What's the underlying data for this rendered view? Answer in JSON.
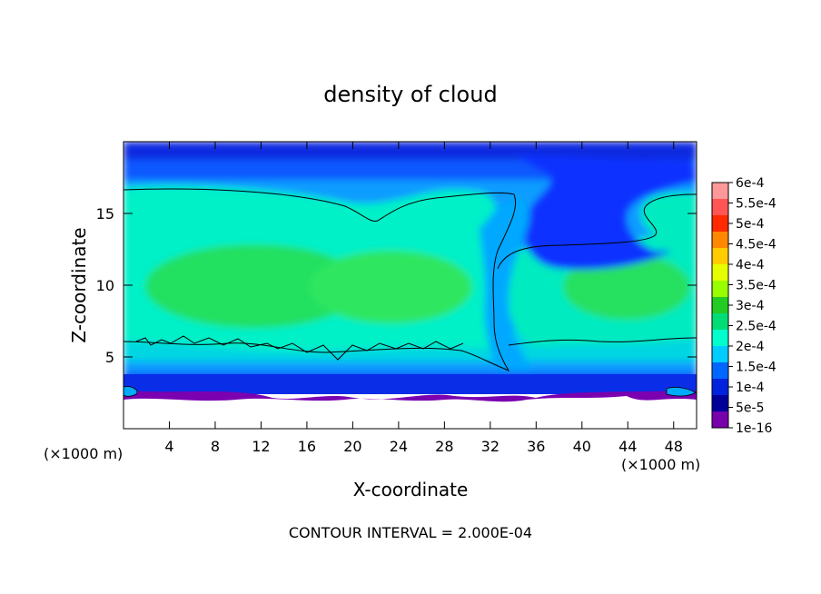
{
  "chart_data": {
    "type": "heatmap",
    "title": "density of cloud",
    "xlabel": "X-coordinate",
    "ylabel": "Z-coordinate",
    "x_unit_left": "(×1000 m)",
    "x_unit_right": "(×1000 m)",
    "xlim": [
      0,
      50
    ],
    "ylim": [
      0,
      20
    ],
    "xticks": [
      4,
      8,
      12,
      16,
      20,
      24,
      28,
      32,
      36,
      40,
      44,
      48
    ],
    "yticks": [
      5,
      10,
      15
    ],
    "footer": "CONTOUR INTERVAL = 2.000E-04",
    "colorbar": {
      "labels": [
        "6e-4",
        "5.5e-4",
        "5e-4",
        "4.5e-4",
        "4e-4",
        "3.5e-4",
        "3e-4",
        "2.5e-4",
        "2e-4",
        "1.5e-4",
        "1e-4",
        "5e-5",
        "1e-16"
      ],
      "colors": [
        "#ff9999",
        "#ff5555",
        "#ff2a00",
        "#ff8800",
        "#ffcc00",
        "#e6ff00",
        "#99ff00",
        "#22cc22",
        "#00dd77",
        "#00ffcc",
        "#00ccff",
        "#0066ff",
        "#0022dd",
        "#000099",
        "#7700aa"
      ]
    },
    "description_regions": {
      "cloud_base_approx_z": 3,
      "cloud_top_approx_z": 20,
      "main_contour_2e-4_left_top_z": 16.6,
      "main_contour_2e-4_bottom_z": 6
    }
  },
  "colors": {
    "deep_blue": "#0a18d8",
    "blue": "#1060ff",
    "light_blue": "#00aaff",
    "cyan": "#00e6dd",
    "aqua_green": "#10f0a8",
    "green": "#22e060",
    "purple": "#7a00b0",
    "white": "#ffffff"
  }
}
